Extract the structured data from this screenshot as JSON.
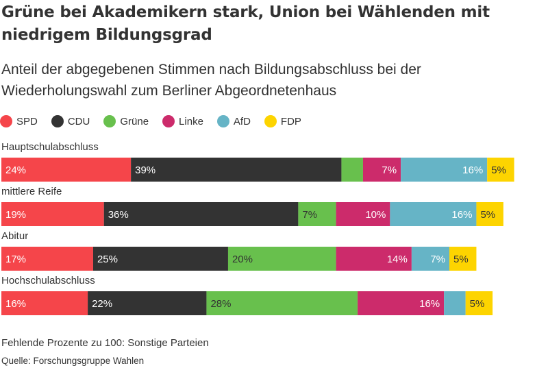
{
  "title": "Grüne bei Akademikern stark, Union bei Wählenden mit niedrigem Bildungsgrad",
  "subtitle": "Anteil der abgegebenen Stimmen nach Bildungsabschluss bei der Wiederholungswahl zum Berliner Abgeordnetenhaus",
  "footnote": "Fehlende Prozente zu 100: Sonstige Parteien",
  "source": "Quelle: Forschungsgruppe Wahlen",
  "chart_data": {
    "type": "bar",
    "orientation": "horizontal",
    "stacked": true,
    "xlim": [
      0,
      100
    ],
    "legend_position": "top-left",
    "categories": [
      "Hauptschulabschluss",
      "mittlere Reife",
      "Abitur",
      "Hochschulabschluss"
    ],
    "series": [
      {
        "name": "SPD",
        "color": "#f5454a",
        "values": [
          24,
          19,
          17,
          16
        ],
        "labels": [
          "24%",
          "19%",
          "17%",
          "16%"
        ],
        "label_color": "#ffffff"
      },
      {
        "name": "CDU",
        "color": "#333333",
        "values": [
          39,
          36,
          25,
          22
        ],
        "labels": [
          "39%",
          "36%",
          "25%",
          "22%"
        ],
        "label_color": "#ffffff"
      },
      {
        "name": "Grüne",
        "color": "#68c04d",
        "values": [
          4,
          7,
          20,
          28
        ],
        "labels": [
          "",
          "7%",
          "20%",
          "28%"
        ],
        "label_color": "#333333"
      },
      {
        "name": "Linke",
        "color": "#cc2b6b",
        "values": [
          7,
          10,
          14,
          16
        ],
        "labels": [
          "7%",
          "10%",
          "14%",
          "16%"
        ],
        "label_color": "#ffffff"
      },
      {
        "name": "AfD",
        "color": "#66b4c6",
        "values": [
          16,
          16,
          7,
          4
        ],
        "labels": [
          "16%",
          "16%",
          "7%",
          ""
        ],
        "label_color": "#ffffff"
      },
      {
        "name": "FDP",
        "color": "#fdd400",
        "values": [
          5,
          5,
          5,
          5
        ],
        "labels": [
          "5%",
          "5%",
          "5%",
          "5%"
        ],
        "label_color": "#333333"
      }
    ]
  }
}
